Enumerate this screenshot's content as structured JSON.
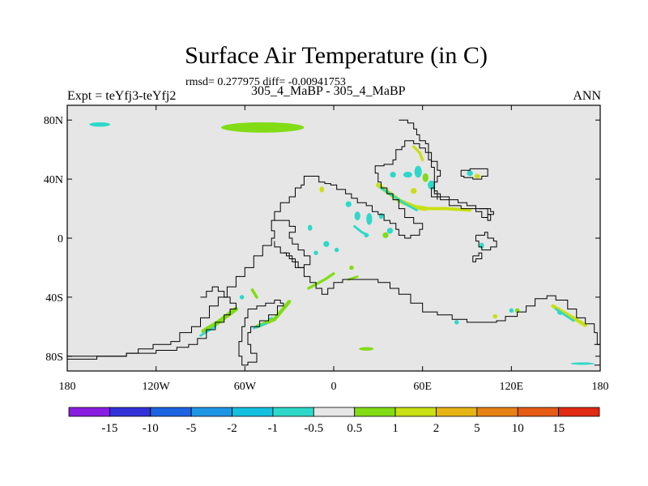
{
  "header": {
    "title": "Surface Air Temperature (in C)",
    "stats": "rmsd= 0.277975 diff= -0.00941753",
    "left_label": "Expt = teYfj3-teYfj2",
    "center_label": "305_4_MaBP - 305_4_MaBP",
    "right_label": "ANN"
  },
  "chart_data": {
    "type": "heatmap",
    "title": "Surface Air Temperature (in C)",
    "xlabel": "",
    "ylabel": "",
    "xlim": [
      -180,
      180
    ],
    "ylim": [
      -90,
      90
    ],
    "x_ticks": [
      {
        "value": -180,
        "label": "180"
      },
      {
        "value": -120,
        "label": "120W"
      },
      {
        "value": -60,
        "label": "60W"
      },
      {
        "value": 0,
        "label": "0"
      },
      {
        "value": 60,
        "label": "60E"
      },
      {
        "value": 120,
        "label": "120E"
      },
      {
        "value": 180,
        "label": "180"
      }
    ],
    "y_ticks": [
      {
        "value": 80,
        "label": "80N"
      },
      {
        "value": 40,
        "label": "40N"
      },
      {
        "value": 0,
        "label": "0"
      },
      {
        "value": -40,
        "label": "40S"
      },
      {
        "value": -80,
        "label": "80S"
      }
    ],
    "background_color": "#e6e6e6",
    "colorbar": {
      "labels": [
        "-15",
        "-10",
        "-5",
        "-2",
        "-1",
        "-0.5",
        "0.5",
        "1",
        "2",
        "5",
        "10",
        "15"
      ],
      "colors": [
        "#8a1ee0",
        "#3232d8",
        "#1c64e0",
        "#1e96e6",
        "#14c0e0",
        "#2ed8c8",
        "#e6e6e6",
        "#82dc14",
        "#c8e014",
        "#e6b414",
        "#e68214",
        "#e65a14",
        "#e02a14"
      ]
    },
    "patches": [
      {
        "lon": -158,
        "lat": 77,
        "rx": 7,
        "ry": 1.5,
        "color": "#2ed8c8"
      },
      {
        "lon": -48,
        "lat": 75,
        "rx": 28,
        "ry": 3.5,
        "color": "#82dc14"
      },
      {
        "lon": 50,
        "lat": 43,
        "rx": 3,
        "ry": 2,
        "color": "#2ed8c8"
      },
      {
        "lon": 57,
        "lat": 45,
        "rx": 2.5,
        "ry": 4,
        "color": "#2ed8c8"
      },
      {
        "lon": 62,
        "lat": 41,
        "rx": 2,
        "ry": 3,
        "color": "#82dc14"
      },
      {
        "lon": 66,
        "lat": 36,
        "rx": 2.5,
        "ry": 3,
        "color": "#2ed8c8"
      },
      {
        "lon": 40,
        "lat": 43,
        "rx": 2,
        "ry": 2,
        "color": "#2ed8c8"
      },
      {
        "lon": 54,
        "lat": 32,
        "rx": 2,
        "ry": 2,
        "color": "#c8e014"
      },
      {
        "lon": 92,
        "lat": 44,
        "rx": 2,
        "ry": 2,
        "color": "#2ed8c8"
      },
      {
        "lon": 97,
        "lat": 42,
        "rx": 2,
        "ry": 1.5,
        "color": "#c8e014"
      },
      {
        "lon": -8,
        "lat": 33,
        "rx": 1.5,
        "ry": 2,
        "color": "#c8e014"
      },
      {
        "lon": 10,
        "lat": 23,
        "rx": 2,
        "ry": 2,
        "color": "#2ed8c8"
      },
      {
        "lon": 16,
        "lat": 15,
        "rx": 2,
        "ry": 3,
        "color": "#2ed8c8"
      },
      {
        "lon": 24,
        "lat": 13,
        "rx": 2,
        "ry": 4,
        "color": "#2ed8c8"
      },
      {
        "lon": 32,
        "lat": 15,
        "rx": 1.5,
        "ry": 2,
        "color": "#2ed8c8"
      },
      {
        "lon": 38,
        "lat": 5,
        "rx": 2,
        "ry": 2,
        "color": "#2ed8c8"
      },
      {
        "lon": 35,
        "lat": 2,
        "rx": 2,
        "ry": 2,
        "color": "#82dc14"
      },
      {
        "lon": -16,
        "lat": 7,
        "rx": 1.5,
        "ry": 2,
        "color": "#2ed8c8"
      },
      {
        "lon": -5,
        "lat": -4,
        "rx": 2,
        "ry": 2,
        "color": "#2ed8c8"
      },
      {
        "lon": -12,
        "lat": -10,
        "rx": 1.5,
        "ry": 1.5,
        "color": "#2ed8c8"
      },
      {
        "lon": 2,
        "lat": -8,
        "rx": 1.5,
        "ry": 1.5,
        "color": "#2ed8c8"
      },
      {
        "lon": 12,
        "lat": -20,
        "rx": 1.5,
        "ry": 1.5,
        "color": "#82dc14"
      },
      {
        "lon": 22,
        "lat": 2,
        "rx": 1.5,
        "ry": 1.5,
        "color": "#2ed8c8"
      },
      {
        "lon": -62,
        "lat": -40,
        "rx": 1.5,
        "ry": 1.5,
        "color": "#2ed8c8"
      },
      {
        "lon": -42,
        "lat": -55,
        "rx": 2,
        "ry": 1.5,
        "color": "#2ed8c8"
      },
      {
        "lon": 22,
        "lat": -75,
        "rx": 5,
        "ry": 1.2,
        "color": "#82dc14"
      },
      {
        "lon": 83,
        "lat": -57,
        "rx": 1.5,
        "ry": 1.5,
        "color": "#2ed8c8"
      },
      {
        "lon": 109,
        "lat": -53,
        "rx": 1.5,
        "ry": 1.5,
        "color": "#c8e014"
      },
      {
        "lon": 124,
        "lat": -49,
        "rx": 1.5,
        "ry": 1.5,
        "color": "#82dc14"
      },
      {
        "lon": 153,
        "lat": -50,
        "rx": 2,
        "ry": 2,
        "color": "#2ed8c8"
      },
      {
        "lon": 168,
        "lat": -85,
        "rx": 8,
        "ry": 0.8,
        "color": "#2ed8c8"
      },
      {
        "lon": 100,
        "lat": -5,
        "rx": 1.5,
        "ry": 2,
        "color": "#2ed8c8"
      },
      {
        "lon": 120,
        "lat": -49,
        "rx": 1.5,
        "ry": 1.5,
        "color": "#2ed8c8"
      }
    ],
    "stripes": [
      {
        "points": [
          [
            30,
            36
          ],
          [
            45,
            25
          ],
          [
            55,
            21
          ],
          [
            62,
            20
          ]
        ],
        "width": 3,
        "color": "#c8e014"
      },
      {
        "points": [
          [
            32,
            34
          ],
          [
            47,
            24
          ],
          [
            56,
            19
          ]
        ],
        "width": 1.6,
        "color": "#2ed8c8"
      },
      {
        "points": [
          [
            61,
            20
          ],
          [
            75,
            20
          ],
          [
            92,
            19
          ]
        ],
        "width": 2.2,
        "color": "#c8e014"
      },
      {
        "points": [
          [
            54,
            62
          ],
          [
            58,
            58
          ],
          [
            60,
            53
          ]
        ],
        "width": 1.8,
        "color": "#c8e014"
      },
      {
        "points": [
          [
            14,
            8
          ],
          [
            19,
            4
          ],
          [
            23,
            2
          ]
        ],
        "width": 1.6,
        "color": "#2ed8c8"
      },
      {
        "points": [
          [
            -88,
            -63
          ],
          [
            -78,
            -57
          ],
          [
            -66,
            -48
          ]
        ],
        "width": 3,
        "color": "#82dc14"
      },
      {
        "points": [
          [
            -90,
            -66
          ],
          [
            -80,
            -60
          ]
        ],
        "width": 1.5,
        "color": "#2ed8c8"
      },
      {
        "points": [
          [
            -52,
            -60
          ],
          [
            -40,
            -55
          ],
          [
            -30,
            -43
          ]
        ],
        "width": 2.5,
        "color": "#82dc14"
      },
      {
        "points": [
          [
            -54,
            -61
          ],
          [
            -46,
            -58
          ]
        ],
        "width": 1.5,
        "color": "#2ed8c8"
      },
      {
        "points": [
          [
            -55,
            -35
          ],
          [
            -52,
            -40
          ]
        ],
        "width": 2,
        "color": "#82dc14"
      },
      {
        "points": [
          [
            -17,
            -34
          ],
          [
            -6,
            -28
          ],
          [
            0,
            -24
          ]
        ],
        "width": 1.8,
        "color": "#82dc14"
      },
      {
        "points": [
          [
            148,
            -46
          ],
          [
            160,
            -53
          ],
          [
            170,
            -59
          ]
        ],
        "width": 2.5,
        "color": "#c8e014"
      },
      {
        "points": [
          [
            150,
            -48
          ],
          [
            162,
            -56
          ]
        ],
        "width": 1.5,
        "color": "#2ed8c8"
      },
      {
        "points": [
          [
            10,
            -28
          ],
          [
            16,
            -26
          ]
        ],
        "width": 1.5,
        "color": "#82dc14"
      }
    ],
    "coastlines": [
      [
        [
          -180,
          -80
        ],
        [
          -148,
          -80
        ],
        [
          -140,
          -78
        ],
        [
          -132,
          -75
        ],
        [
          -122,
          -72
        ],
        [
          -110,
          -70
        ],
        [
          -104,
          -64
        ],
        [
          -96,
          -60
        ],
        [
          -90,
          -54
        ],
        [
          -84,
          -46
        ],
        [
          -78,
          -40
        ],
        [
          -72,
          -33
        ],
        [
          -66,
          -26
        ],
        [
          -60,
          -20
        ],
        [
          -54,
          -12
        ],
        [
          -48,
          -5
        ],
        [
          -42,
          0
        ],
        [
          -40,
          5
        ],
        [
          -42,
          12
        ],
        [
          -40,
          18
        ],
        [
          -36,
          24
        ],
        [
          -30,
          28
        ],
        [
          -26,
          34
        ],
        [
          -22,
          36
        ],
        [
          -20,
          42
        ],
        [
          -14,
          42
        ],
        [
          -10,
          38
        ],
        [
          -6,
          37
        ],
        [
          -2,
          36
        ],
        [
          2,
          33
        ],
        [
          8,
          30
        ],
        [
          12,
          27
        ],
        [
          16,
          24
        ],
        [
          22,
          22
        ],
        [
          26,
          18
        ],
        [
          30,
          16
        ],
        [
          34,
          12
        ],
        [
          38,
          10
        ],
        [
          42,
          6
        ],
        [
          44,
          2
        ],
        [
          48,
          0
        ],
        [
          52,
          2
        ],
        [
          58,
          6
        ],
        [
          60,
          10
        ],
        [
          54,
          14
        ],
        [
          48,
          20
        ],
        [
          44,
          26
        ],
        [
          40,
          30
        ],
        [
          36,
          34
        ],
        [
          32,
          38
        ],
        [
          30,
          44
        ],
        [
          28,
          49
        ],
        [
          34,
          50
        ],
        [
          40,
          53
        ],
        [
          42,
          60
        ],
        [
          46,
          62
        ],
        [
          48,
          66
        ],
        [
          54,
          64
        ],
        [
          58,
          61
        ],
        [
          62,
          58
        ],
        [
          64,
          53
        ],
        [
          66,
          48
        ],
        [
          68,
          42
        ],
        [
          68,
          34
        ],
        [
          66,
          28
        ],
        [
          72,
          26
        ],
        [
          78,
          22
        ],
        [
          86,
          20
        ],
        [
          92,
          20
        ],
        [
          96,
          18
        ],
        [
          100,
          14
        ],
        [
          104,
          12
        ],
        [
          106,
          16
        ],
        [
          104,
          20
        ],
        [
          96,
          22
        ],
        [
          90,
          24
        ],
        [
          84,
          26
        ],
        [
          78,
          28
        ],
        [
          72,
          30
        ],
        [
          68,
          34
        ]
      ],
      [
        [
          -34,
          -10
        ],
        [
          -30,
          -14
        ],
        [
          -26,
          -20
        ],
        [
          -20,
          -26
        ],
        [
          -16,
          -30
        ],
        [
          -12,
          -34
        ],
        [
          -8,
          -38
        ],
        [
          -4,
          -34
        ],
        [
          0,
          -30
        ],
        [
          6,
          -28
        ],
        [
          14,
          -28
        ],
        [
          22,
          -28
        ],
        [
          30,
          -30
        ],
        [
          38,
          -34
        ],
        [
          44,
          -38
        ],
        [
          52,
          -44
        ],
        [
          60,
          -50
        ],
        [
          70,
          -52
        ],
        [
          80,
          -55
        ],
        [
          90,
          -57
        ],
        [
          100,
          -57
        ],
        [
          110,
          -56
        ],
        [
          116,
          -53
        ],
        [
          124,
          -50
        ],
        [
          130,
          -46
        ],
        [
          136,
          -41
        ],
        [
          144,
          -39
        ],
        [
          150,
          -42
        ],
        [
          158,
          -48
        ],
        [
          164,
          -54
        ],
        [
          170,
          -58
        ],
        [
          176,
          -64
        ],
        [
          178,
          -72
        ],
        [
          180,
          -76
        ]
      ],
      [
        [
          -90,
          -40
        ],
        [
          -86,
          -36
        ],
        [
          -82,
          -33
        ],
        [
          -78,
          -36
        ],
        [
          -74,
          -40
        ],
        [
          -70,
          -44
        ],
        [
          -66,
          -48
        ],
        [
          -70,
          -52
        ],
        [
          -74,
          -57
        ],
        [
          -80,
          -62
        ],
        [
          -86,
          -68
        ],
        [
          -92,
          -72
        ],
        [
          -98,
          -74
        ],
        [
          -106,
          -76
        ],
        [
          -120,
          -78
        ],
        [
          -140,
          -80
        ],
        [
          -160,
          -82
        ],
        [
          -180,
          -83
        ]
      ],
      [
        [
          -58,
          -48
        ],
        [
          -52,
          -46
        ],
        [
          -46,
          -44
        ],
        [
          -40,
          -42
        ],
        [
          -36,
          -44
        ],
        [
          -34,
          -46
        ],
        [
          -38,
          -52
        ],
        [
          -44,
          -56
        ],
        [
          -50,
          -60
        ],
        [
          -56,
          -64
        ],
        [
          -58,
          -72
        ],
        [
          -56,
          -78
        ],
        [
          -52,
          -84
        ],
        [
          -58,
          -86
        ],
        [
          -62,
          -80
        ],
        [
          -64,
          -70
        ],
        [
          -62,
          -60
        ],
        [
          -60,
          -54
        ],
        [
          -58,
          -48
        ]
      ],
      [
        [
          -40,
          12
        ],
        [
          -34,
          12
        ],
        [
          -30,
          8
        ],
        [
          -26,
          4
        ],
        [
          -30,
          0
        ],
        [
          -28,
          -4
        ],
        [
          -24,
          -8
        ],
        [
          -20,
          -12
        ],
        [
          -16,
          -18
        ],
        [
          -20,
          -20
        ],
        [
          -24,
          -16
        ],
        [
          -28,
          -12
        ],
        [
          -32,
          -10
        ],
        [
          -36,
          -6
        ],
        [
          -40,
          -2
        ]
      ],
      [
        [
          44,
          80
        ],
        [
          50,
          78
        ],
        [
          54,
          74
        ],
        [
          56,
          70
        ],
        [
          58,
          66
        ],
        [
          62,
          64
        ],
        [
          64,
          58
        ],
        [
          66,
          52
        ],
        [
          70,
          46
        ],
        [
          72,
          42
        ],
        [
          70,
          38
        ],
        [
          68,
          32
        ],
        [
          70,
          26
        ]
      ],
      [
        [
          86,
          46
        ],
        [
          92,
          47
        ],
        [
          98,
          47
        ],
        [
          104,
          46
        ],
        [
          104,
          42
        ],
        [
          100,
          40
        ],
        [
          94,
          41
        ],
        [
          88,
          42
        ],
        [
          86,
          46
        ]
      ],
      [
        [
          98,
          20
        ],
        [
          106,
          18
        ],
        [
          108,
          16
        ],
        [
          104,
          14
        ]
      ],
      [
        [
          96,
          2
        ],
        [
          102,
          4
        ],
        [
          104,
          0
        ],
        [
          108,
          -2
        ],
        [
          110,
          -6
        ],
        [
          106,
          -8
        ],
        [
          100,
          -6
        ],
        [
          98,
          -2
        ],
        [
          96,
          2
        ]
      ],
      [
        [
          94,
          -12
        ],
        [
          98,
          -10
        ],
        [
          100,
          -14
        ],
        [
          96,
          -16
        ],
        [
          94,
          -12
        ]
      ],
      [
        [
          176,
          -72
        ],
        [
          180,
          -80
        ],
        [
          180,
          -86
        ],
        [
          176,
          -86
        ]
      ]
    ]
  }
}
